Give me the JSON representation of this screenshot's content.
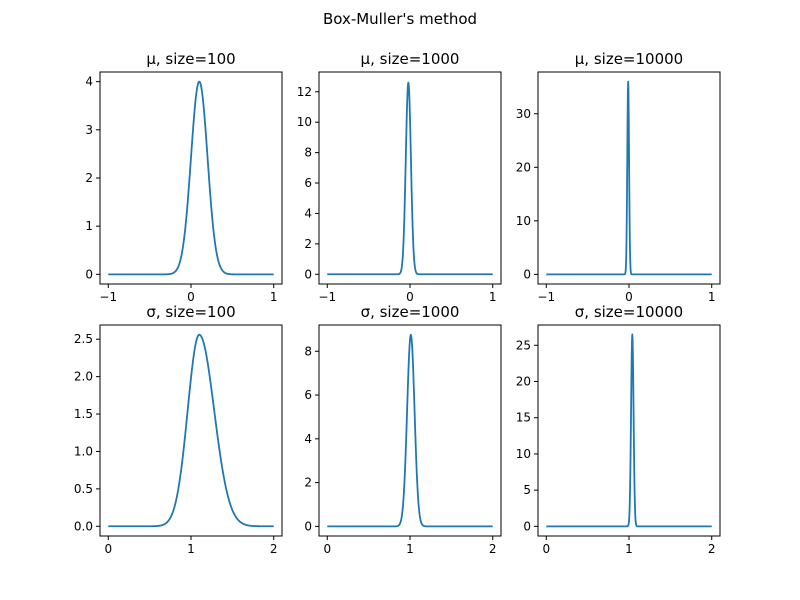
{
  "figure": {
    "title": "Box-Muller's method",
    "line_color": "#1f77b4"
  },
  "chart_data": [
    {
      "type": "line",
      "title": "μ, size=100",
      "xlim": [
        -1.1,
        1.1
      ],
      "ylim": [
        -0.2,
        4.2
      ],
      "xticks": [
        -1,
        0,
        1
      ],
      "xtick_labels": [
        "−1",
        "0",
        "1"
      ],
      "yticks": [
        0,
        1,
        2,
        3,
        4
      ],
      "ytick_labels": [
        "0",
        "1",
        "2",
        "3",
        "4"
      ],
      "series": [
        {
          "mean": 0.1,
          "sigma": 0.1,
          "peak": 4.0,
          "xmin": -1,
          "xmax": 1
        }
      ]
    },
    {
      "type": "line",
      "title": "μ, size=1000",
      "xlim": [
        -1.1,
        1.1
      ],
      "ylim": [
        -0.64,
        13.3
      ],
      "xticks": [
        -1,
        0,
        1
      ],
      "xtick_labels": [
        "−1",
        "0",
        "1"
      ],
      "yticks": [
        0,
        2,
        4,
        6,
        8,
        10,
        12
      ],
      "ytick_labels": [
        "0",
        "2",
        "4",
        "6",
        "8",
        "10",
        "12"
      ],
      "series": [
        {
          "mean": -0.02,
          "sigma": 0.031,
          "peak": 12.6,
          "xmin": -1,
          "xmax": 1
        }
      ]
    },
    {
      "type": "line",
      "title": "μ, size=10000",
      "xlim": [
        -1.1,
        1.1
      ],
      "ylim": [
        -1.8,
        37.8
      ],
      "xticks": [
        -1,
        0,
        1
      ],
      "xtick_labels": [
        "−1",
        "0",
        "1"
      ],
      "yticks": [
        0,
        10,
        20,
        30
      ],
      "ytick_labels": [
        "0",
        "10",
        "20",
        "30"
      ],
      "series": [
        {
          "mean": -0.01,
          "sigma": 0.0108,
          "peak": 36.0,
          "xmin": -1,
          "xmax": 1
        }
      ]
    },
    {
      "type": "line",
      "title": "σ, size=100",
      "xlim": [
        -0.1,
        2.1
      ],
      "ylim": [
        -0.13,
        2.69
      ],
      "xticks": [
        0,
        1,
        2
      ],
      "xtick_labels": [
        "0",
        "1",
        "2"
      ],
      "yticks": [
        0,
        0.5,
        1,
        1.5,
        2,
        2.5
      ],
      "ytick_labels": [
        "0.0",
        "0.5",
        "1.0",
        "1.5",
        "2.0",
        "2.5"
      ],
      "series": [
        {
          "mean": 1.1,
          "sigma": 0.14,
          "sigma_right": 0.18,
          "peak": 2.56,
          "xmin": 0,
          "xmax": 2
        }
      ]
    },
    {
      "type": "line",
      "title": "σ, size=1000",
      "xlim": [
        -0.1,
        2.1
      ],
      "ylim": [
        -0.44,
        9.2
      ],
      "xticks": [
        0,
        1,
        2
      ],
      "xtick_labels": [
        "0",
        "1",
        "2"
      ],
      "yticks": [
        0,
        2,
        4,
        6,
        8
      ],
      "ytick_labels": [
        "0",
        "2",
        "4",
        "6",
        "8"
      ],
      "series": [
        {
          "mean": 1.01,
          "sigma": 0.045,
          "peak": 8.75,
          "xmin": 0,
          "xmax": 2
        }
      ]
    },
    {
      "type": "line",
      "title": "σ, size=10000",
      "xlim": [
        -0.1,
        2.1
      ],
      "ylim": [
        -1.33,
        27.8
      ],
      "xticks": [
        0,
        1,
        2
      ],
      "xtick_labels": [
        "0",
        "1",
        "2"
      ],
      "yticks": [
        0,
        5,
        10,
        15,
        20,
        25
      ],
      "ytick_labels": [
        "0",
        "5",
        "10",
        "15",
        "20",
        "25"
      ],
      "series": [
        {
          "mean": 1.04,
          "sigma": 0.015,
          "peak": 26.5,
          "xmin": 0,
          "xmax": 2
        }
      ]
    }
  ]
}
